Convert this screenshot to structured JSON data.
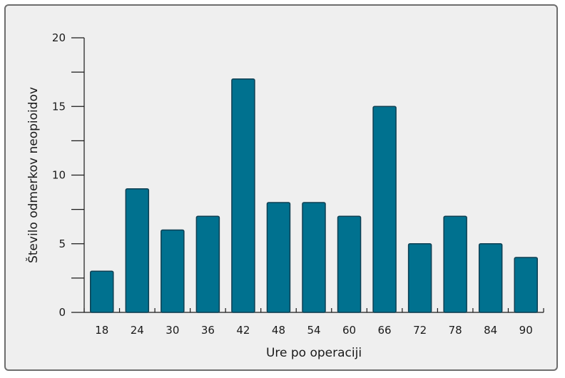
{
  "chart_data": {
    "type": "bar",
    "categories": [
      "18",
      "24",
      "30",
      "36",
      "42",
      "48",
      "54",
      "60",
      "66",
      "72",
      "78",
      "84",
      "90"
    ],
    "values": [
      3,
      9,
      6,
      7,
      17,
      8,
      8,
      7,
      15,
      5,
      7,
      5,
      4
    ],
    "xlabel": "Ure po operaciji",
    "ylabel": "Število odmerkov neopioidov",
    "ylim": [
      0,
      20
    ],
    "y_major_ticks": [
      "0",
      "5",
      "10",
      "15",
      "20"
    ],
    "bar_color": "#00718f",
    "bar_edge_color": "#0d3f52",
    "background_color": "#efefef",
    "grid": false
  }
}
